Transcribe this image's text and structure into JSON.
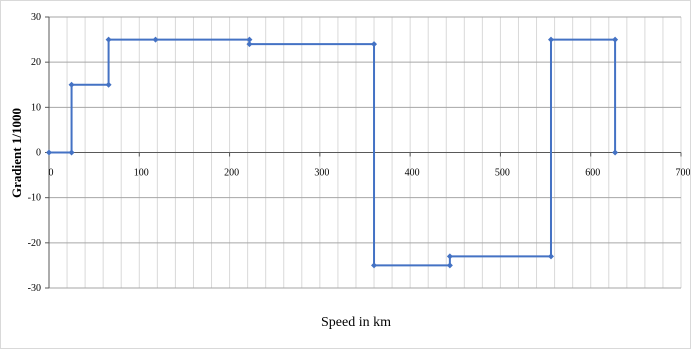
{
  "chart_data": {
    "type": "line",
    "title": "",
    "xlabel": "Speed in km",
    "ylabel": "Gradient 1/1000",
    "xlim": [
      0,
      700
    ],
    "ylim": [
      -30,
      30
    ],
    "x_ticks": [
      0,
      100,
      200,
      300,
      400,
      500,
      600,
      700
    ],
    "y_ticks": [
      -30,
      -20,
      -10,
      0,
      10,
      20,
      30
    ],
    "x_tick_labels": [
      "0",
      "100",
      "200",
      "300",
      "400",
      "500",
      "600",
      "700"
    ],
    "y_tick_labels": [
      "-30",
      "-20",
      "-10",
      "0",
      "10",
      "20",
      "30"
    ],
    "grid": {
      "horizontal": true,
      "vertical": true,
      "vertical_step": 20
    },
    "legend": "none",
    "series": [
      {
        "color": "#4472c4",
        "marker": "diamond",
        "x": [
          0,
          25,
          25,
          66,
          66,
          118,
          222,
          222,
          360,
          360,
          444,
          444,
          556,
          556,
          627,
          627
        ],
        "y": [
          0,
          0,
          15,
          15,
          25,
          25,
          25,
          24,
          24,
          -25,
          -25,
          -23,
          -23,
          25,
          25,
          0
        ]
      }
    ]
  }
}
